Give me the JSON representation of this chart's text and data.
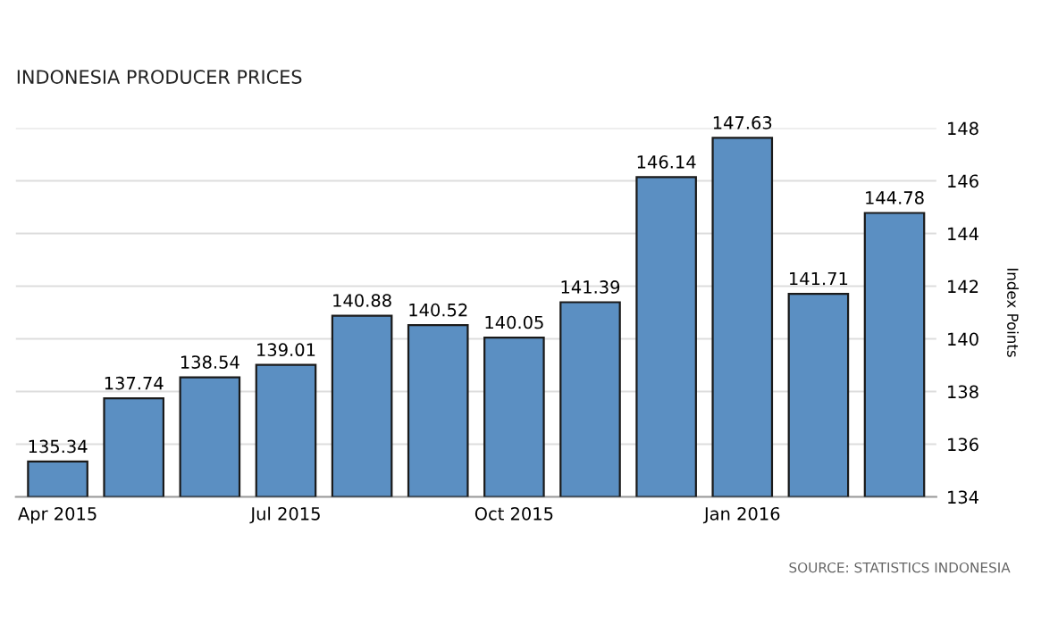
{
  "chart_data": {
    "type": "bar",
    "title": "INDONESIA PRODUCER PRICES",
    "ylabel": "Index Points",
    "categories": [
      "Apr 2015",
      null,
      null,
      "Jul 2015",
      null,
      null,
      "Oct 2015",
      null,
      null,
      "Jan 2016",
      null,
      null
    ],
    "values": [
      135.34,
      137.74,
      138.54,
      139.01,
      140.88,
      140.52,
      140.05,
      141.39,
      146.14,
      147.63,
      141.71,
      144.78
    ],
    "color": "#5b8fc2",
    "ylim": [
      134,
      148
    ],
    "yticks": [
      134,
      136,
      138,
      140,
      142,
      144,
      146,
      148
    ],
    "grid": "y",
    "data_labels": true,
    "annotations": [
      "SOURCE: STATISTICS INDONESIA"
    ]
  }
}
